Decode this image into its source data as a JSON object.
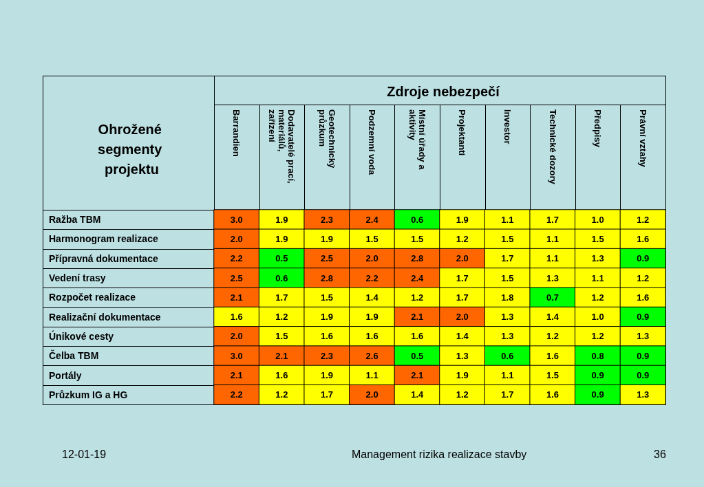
{
  "chart_data": {
    "type": "heatmap",
    "title": "Zdroje nebezpečí",
    "ylabel": "Ohrožené segmenty projektu",
    "categories": [
      "Barrandien",
      "Dodavatelé prací, materiálů, zařízení",
      "Geotechnický průzkum",
      "Podzemní voda",
      "Místní úřady a aktivity",
      "Projektanti",
      "Investor",
      "Technické dozory",
      "Předpisy",
      "Právní vztahy"
    ],
    "y_categories": [
      "Ražba TBM",
      "Harmonogram realizace",
      "Přípravná dokumentace",
      "Vedení trasy",
      "Rozpočet realizace",
      "Realizační dokumentace",
      "Únikové cesty",
      "Čelba TBM",
      "Portály",
      "Průzkum IG a HG"
    ],
    "cells": [
      [
        3.0,
        1.9,
        2.3,
        2.4,
        0.6,
        1.9,
        1.1,
        1.7,
        1.0,
        1.2
      ],
      [
        2.0,
        1.9,
        1.9,
        1.5,
        1.5,
        1.2,
        1.5,
        1.1,
        1.5,
        1.6
      ],
      [
        2.2,
        0.5,
        2.5,
        2.0,
        2.8,
        2.0,
        1.7,
        1.1,
        1.3,
        0.9
      ],
      [
        2.5,
        0.6,
        2.8,
        2.2,
        2.4,
        1.7,
        1.5,
        1.3,
        1.1,
        1.2
      ],
      [
        2.1,
        1.7,
        1.5,
        1.4,
        1.2,
        1.7,
        1.8,
        0.7,
        1.2,
        1.6
      ],
      [
        1.6,
        1.2,
        1.9,
        1.9,
        2.1,
        2.0,
        1.3,
        1.4,
        1.0,
        0.9
      ],
      [
        2.0,
        1.5,
        1.6,
        1.6,
        1.6,
        1.4,
        1.3,
        1.2,
        1.2,
        1.3
      ],
      [
        3.0,
        2.1,
        2.3,
        2.6,
        0.5,
        1.3,
        0.6,
        1.6,
        0.8,
        0.9
      ],
      [
        2.1,
        1.6,
        1.9,
        1.1,
        2.1,
        1.9,
        1.1,
        1.5,
        0.9,
        0.9
      ],
      [
        2.2,
        1.2,
        1.7,
        2.0,
        1.4,
        1.2,
        1.7,
        1.6,
        0.9,
        1.3
      ]
    ],
    "colors": [
      [
        "#ff6600",
        "#ffff00",
        "#ff6600",
        "#ff6600",
        "#00ff00",
        "#ffff00",
        "#ffff00",
        "#ffff00",
        "#ffff00",
        "#ffff00"
      ],
      [
        "#ff6600",
        "#ffff00",
        "#ffff00",
        "#ffff00",
        "#ffff00",
        "#ffff00",
        "#ffff00",
        "#ffff00",
        "#ffff00",
        "#ffff00"
      ],
      [
        "#ff6600",
        "#00ff00",
        "#ff6600",
        "#ff6600",
        "#ff6600",
        "#ff6600",
        "#ffff00",
        "#ffff00",
        "#ffff00",
        "#00ff00"
      ],
      [
        "#ff6600",
        "#00ff00",
        "#ff6600",
        "#ff6600",
        "#ff6600",
        "#ffff00",
        "#ffff00",
        "#ffff00",
        "#ffff00",
        "#ffff00"
      ],
      [
        "#ff6600",
        "#ffff00",
        "#ffff00",
        "#ffff00",
        "#ffff00",
        "#ffff00",
        "#ffff00",
        "#00ff00",
        "#ffff00",
        "#ffff00"
      ],
      [
        "#ffff00",
        "#ffff00",
        "#ffff00",
        "#ffff00",
        "#ff6600",
        "#ff6600",
        "#ffff00",
        "#ffff00",
        "#ffff00",
        "#00ff00"
      ],
      [
        "#ff6600",
        "#ffff00",
        "#ffff00",
        "#ffff00",
        "#ffff00",
        "#ffff00",
        "#ffff00",
        "#ffff00",
        "#ffff00",
        "#ffff00"
      ],
      [
        "#ff6600",
        "#ff6600",
        "#ff6600",
        "#ff6600",
        "#00ff00",
        "#ffff00",
        "#00ff00",
        "#ffff00",
        "#00ff00",
        "#00ff00"
      ],
      [
        "#ff6600",
        "#ffff00",
        "#ffff00",
        "#ffff00",
        "#ff6600",
        "#ffff00",
        "#ffff00",
        "#ffff00",
        "#00ff00",
        "#00ff00"
      ],
      [
        "#ff6600",
        "#ffff00",
        "#ffff00",
        "#ff6600",
        "#ffff00",
        "#ffff00",
        "#ffff00",
        "#ffff00",
        "#00ff00",
        "#ffff00"
      ]
    ],
    "cell_labels": [
      [
        "3.0",
        "1.9",
        "2.3",
        "2.4",
        "0.6",
        "1.9",
        "1.1",
        "1.7",
        "1.0",
        "1.2"
      ],
      [
        "2.0",
        "1.9",
        "1.9",
        "1.5",
        "1.5",
        "1.2",
        "1.5",
        "1.1",
        "1.5",
        "1.6"
      ],
      [
        "2.2",
        "0.5",
        "2.5",
        "2.0",
        "2.8",
        "2.0",
        "1.7",
        "1.1",
        "1.3",
        "0.9"
      ],
      [
        "2.5",
        "0.6",
        "2.8",
        "2.2",
        "2.4",
        "1.7",
        "1.5",
        "1.3",
        "1.1",
        "1.2"
      ],
      [
        "2.1",
        "1.7",
        "1.5",
        "1.4",
        "1.2",
        "1.7",
        "1.8",
        "0.7",
        "1.2",
        "1.6"
      ],
      [
        "1.6",
        "1.2",
        "1.9",
        "1.9",
        "2.1",
        "2.0",
        "1.3",
        "1.4",
        "1.0",
        "0.9"
      ],
      [
        "2.0",
        "1.5",
        "1.6",
        "1.6",
        "1.6",
        "1.4",
        "1.3",
        "1.2",
        "1.2",
        "1.3"
      ],
      [
        "3.0",
        "2.1",
        "2.3",
        "2.6",
        "0.5",
        "1.3",
        "0.6",
        "1.6",
        "0.8",
        "0.9"
      ],
      [
        "2.1",
        "1.6",
        "1.9",
        "1.1",
        "2.1",
        "1.9",
        "1.1",
        "1.5",
        "0.9",
        "0.9"
      ],
      [
        "2.2",
        "1.2",
        "1.7",
        "2.0",
        "1.4",
        "1.2",
        "1.7",
        "1.6",
        "0.9",
        "1.3"
      ]
    ],
    "data_labels": true,
    "annotations": [
      "12-01-19",
      "Management rizika realizace stavby",
      "36"
    ]
  }
}
